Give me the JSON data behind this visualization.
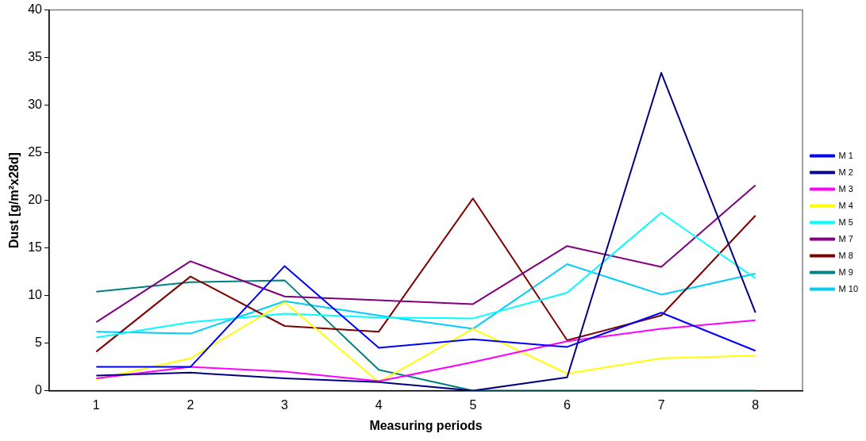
{
  "chart_data": {
    "type": "line",
    "xlabel": "Measuring periods",
    "ylabel": "Dust [g/m²x28d]",
    "categories": [
      "1",
      "2",
      "3",
      "4",
      "5",
      "6",
      "7",
      "8"
    ],
    "ylim": [
      0,
      40
    ],
    "yticks": [
      0,
      5,
      10,
      15,
      20,
      25,
      30,
      35,
      40
    ],
    "grid": false,
    "legend": "right",
    "marker": "none",
    "line_style": "solid",
    "series": [
      {
        "name": "M 1",
        "color": "#0000ff",
        "values": [
          2.5,
          2.5,
          13.1,
          4.5,
          5.4,
          4.6,
          8.2,
          4.2
        ]
      },
      {
        "name": "M 2",
        "color": "#000080",
        "values": [
          1.6,
          1.9,
          1.3,
          0.9,
          0,
          1.4,
          33.4,
          8.2
        ]
      },
      {
        "name": "M 3",
        "color": "#ff00ff",
        "values": [
          1.3,
          2.5,
          2.0,
          1.0,
          3.0,
          5.2,
          6.5,
          7.4
        ]
      },
      {
        "name": "M 4",
        "color": "#ffff00",
        "values": [
          1.2,
          3.4,
          9.3,
          0.9,
          6.5,
          1.8,
          3.4,
          3.7
        ]
      },
      {
        "name": "M 5",
        "color": "#00ffff",
        "values": [
          5.6,
          7.2,
          8.1,
          7.7,
          7.6,
          10.3,
          18.7,
          11.8
        ]
      },
      {
        "name": "M 7",
        "color": "#800080",
        "values": [
          7.2,
          13.6,
          9.9,
          9.5,
          9.1,
          15.2,
          13.0,
          21.6
        ]
      },
      {
        "name": "M 8",
        "color": "#800000",
        "values": [
          4.1,
          12.0,
          6.8,
          6.2,
          20.2,
          5.3,
          7.9,
          18.4
        ]
      },
      {
        "name": "M 9",
        "color": "#008080",
        "values": [
          10.4,
          11.4,
          11.6,
          2.2,
          0,
          0,
          0,
          0
        ]
      },
      {
        "name": "M 10",
        "color": "#00ccff",
        "values": [
          6.2,
          6.0,
          9.4,
          7.9,
          6.5,
          13.3,
          10.1,
          12.3
        ]
      }
    ]
  }
}
